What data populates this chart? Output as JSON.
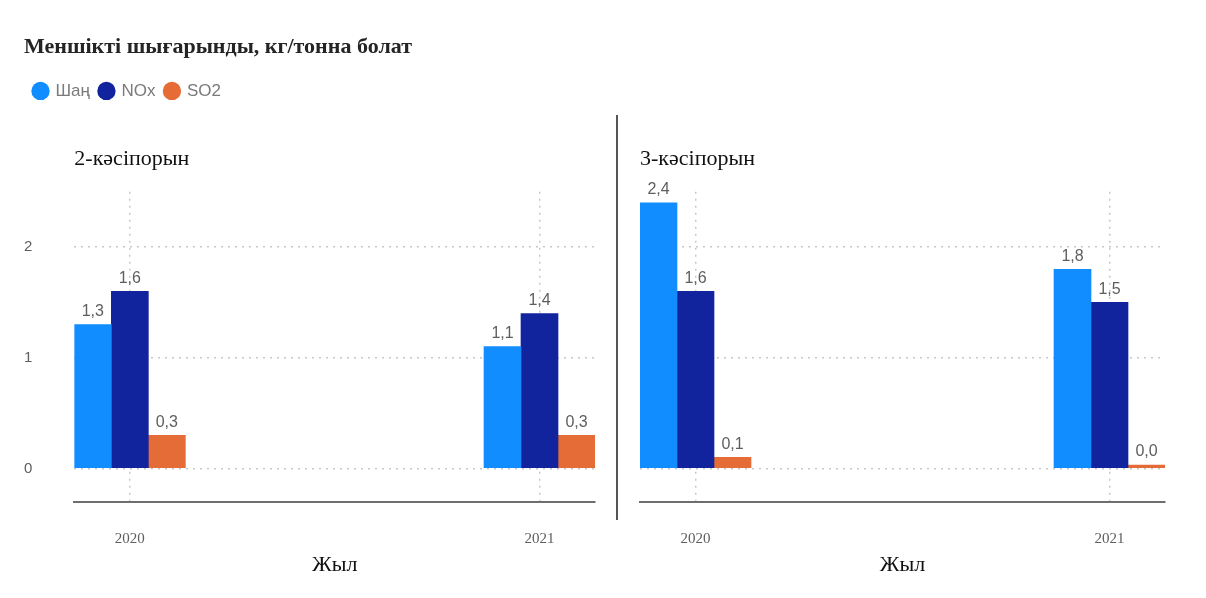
{
  "chart_data": [
    {
      "type": "bar",
      "title": "Меншікті шығарынды, кг/тонна болат",
      "subtitle": "2-кәсіпорын",
      "xlabel": "Жыл",
      "categories": [
        "2020",
        "2021"
      ],
      "series": [
        {
          "name": "Шаң",
          "color": "#118dff",
          "values": [
            1.3,
            1.1
          ],
          "value_labels": [
            "1,3",
            "1,1"
          ]
        },
        {
          "name": "NOx",
          "color": "#12239e",
          "values": [
            1.6,
            1.4
          ],
          "value_labels": [
            "1,6",
            "1,4"
          ]
        },
        {
          "name": "SO2",
          "color": "#e66c37",
          "values": [
            0.3,
            0.3
          ],
          "value_labels": [
            "0,3",
            "0,3"
          ]
        }
      ],
      "ylim": [
        -0.3,
        2.5
      ],
      "yticks": [
        0,
        1,
        2
      ],
      "grid": true,
      "legend": "top left"
    },
    {
      "type": "bar",
      "subtitle": "3-кәсіпорын",
      "xlabel": "Жыл",
      "categories": [
        "2020",
        "2021"
      ],
      "series": [
        {
          "color": "#118dff",
          "values": [
            2.4,
            1.8
          ],
          "value_labels": [
            "2,4",
            "1,8"
          ]
        },
        {
          "color": "#12239e",
          "values": [
            1.6,
            1.5
          ],
          "value_labels": [
            "1,6",
            "1,5"
          ]
        },
        {
          "color": "#e66c37",
          "values": [
            0.1,
            0.03
          ],
          "value_labels": [
            "0,1",
            "0,0"
          ]
        }
      ],
      "ylim": [
        -0.3,
        2.5
      ],
      "yticks": [
        0,
        1,
        2
      ],
      "grid": true,
      "tick_labels": "x"
    }
  ]
}
